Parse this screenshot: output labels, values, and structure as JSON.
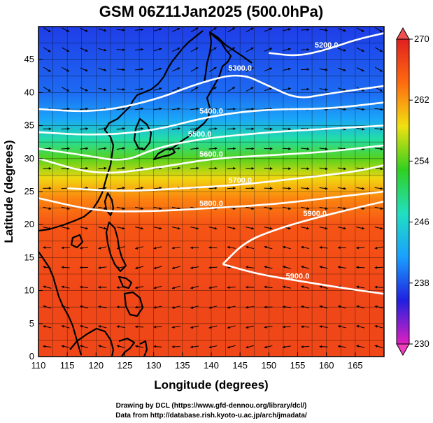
{
  "chart_data": {
    "type": "heatmap",
    "title": "GSM 06Z11Jan2025 (500.0hPa)",
    "xlabel": "Longitude (degrees)",
    "ylabel": "Latitude  (degrees)",
    "xlim": [
      110,
      170
    ],
    "ylim": [
      0,
      50
    ],
    "x_ticks": [
      110,
      115,
      120,
      125,
      130,
      135,
      140,
      145,
      150,
      155,
      160,
      165
    ],
    "y_ticks": [
      0,
      5,
      10,
      15,
      20,
      25,
      30,
      35,
      40,
      45
    ],
    "colorbar": {
      "range": [
        230,
        270
      ],
      "ticks": [
        230,
        238,
        246,
        254,
        262,
        270
      ],
      "stops": [
        "#e020c0",
        "#2020e0",
        "#1aa0ff",
        "#20e0c0",
        "#30d020",
        "#f0e010",
        "#ff6a10",
        "#e02020"
      ]
    },
    "temperature_profile": [
      {
        "lat": 0,
        "value": 267
      },
      {
        "lat": 10,
        "value": 267
      },
      {
        "lat": 20,
        "value": 266
      },
      {
        "lat": 24,
        "value": 263
      },
      {
        "lat": 27,
        "value": 259
      },
      {
        "lat": 30,
        "value": 254
      },
      {
        "lat": 33,
        "value": 248
      },
      {
        "lat": 36,
        "value": 242
      },
      {
        "lat": 40,
        "value": 239
      },
      {
        "lat": 50,
        "value": 237
      }
    ],
    "contours": [
      {
        "label": "5200.0",
        "points": [
          [
            150,
            46
          ],
          [
            155,
            45.5
          ],
          [
            160,
            46.5
          ],
          [
            165,
            48
          ],
          [
            170,
            49
          ]
        ]
      },
      {
        "label": "5300.0",
        "points": [
          [
            110,
            37.5
          ],
          [
            120,
            37
          ],
          [
            130,
            38.8
          ],
          [
            138,
            41.5
          ],
          [
            145,
            43
          ],
          [
            150,
            41
          ],
          [
            155,
            39
          ],
          [
            160,
            39.8
          ],
          [
            170,
            41
          ]
        ]
      },
      {
        "label": "5400.0",
        "points": [
          [
            110,
            34
          ],
          [
            120,
            33.5
          ],
          [
            130,
            34.2
          ],
          [
            140,
            36.5
          ],
          [
            150,
            37.5
          ],
          [
            160,
            37.5
          ],
          [
            170,
            38.5
          ]
        ]
      },
      {
        "label": "5500.0",
        "points": [
          [
            110,
            31.5
          ],
          [
            118,
            30.5
          ],
          [
            125,
            29.5
          ],
          [
            130,
            31.5
          ],
          [
            138,
            33
          ],
          [
            150,
            34
          ],
          [
            160,
            34.5
          ],
          [
            170,
            35
          ]
        ]
      },
      {
        "label": "5600.0",
        "points": [
          [
            110,
            30
          ],
          [
            120,
            27.5
          ],
          [
            130,
            28.5
          ],
          [
            140,
            30
          ],
          [
            150,
            30.5
          ],
          [
            160,
            31
          ],
          [
            170,
            32
          ]
        ]
      },
      {
        "label": "5700.0",
        "points": [
          [
            115,
            25.5
          ],
          [
            125,
            25
          ],
          [
            135,
            25.5
          ],
          [
            145,
            26
          ],
          [
            155,
            27
          ],
          [
            165,
            28
          ],
          [
            170,
            29
          ]
        ]
      },
      {
        "label": "5800.0",
        "points": [
          [
            110,
            24
          ],
          [
            120,
            22
          ],
          [
            130,
            22
          ],
          [
            140,
            22.5
          ],
          [
            150,
            23
          ],
          [
            160,
            24
          ],
          [
            170,
            25
          ]
        ]
      },
      {
        "label": "5900.0",
        "points": [
          [
            142,
            14
          ],
          [
            146,
            17.5
          ],
          [
            152,
            19.5
          ],
          [
            158,
            21
          ],
          [
            165,
            22.5
          ],
          [
            170,
            23.5
          ]
        ]
      },
      {
        "label": "5900.0",
        "points": [
          [
            142,
            14
          ],
          [
            148,
            12.5
          ],
          [
            155,
            11.5
          ],
          [
            162,
            10.5
          ],
          [
            170,
            9.5
          ]
        ]
      }
    ],
    "wind_field": [
      {
        "lat_band": [
          40,
          50
        ],
        "direction": "eastward with northwest cyclonic flow"
      },
      {
        "lat_band": [
          25,
          40
        ],
        "direction": "strong eastward jet"
      },
      {
        "lat_band": [
          0,
          20
        ],
        "direction": "easterly trades, westward"
      }
    ]
  },
  "credits": {
    "line1": "Drawing by DCL (https://www.gfd-dennou.org/library/dcl/)",
    "line2": "Data from http://database.rish.kyoto-u.ac.jp/arch/jmadata/"
  }
}
